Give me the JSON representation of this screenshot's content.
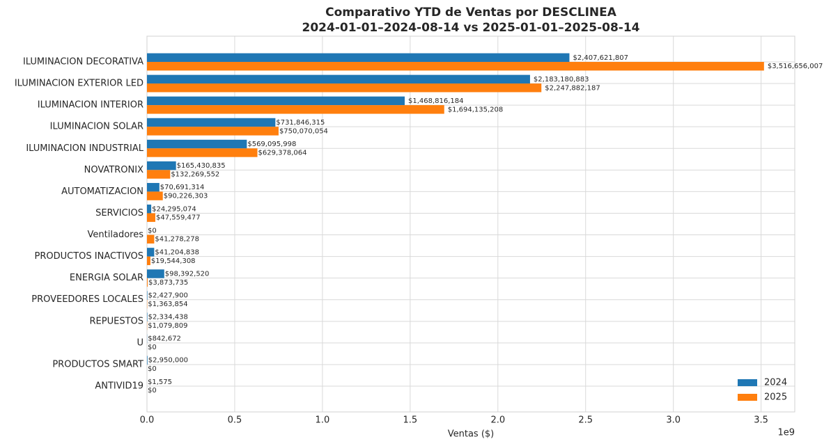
{
  "chart_data": {
    "type": "barh",
    "title": [
      "Comparativo YTD de Ventas por DESCLINEA",
      "2024-01-01–2024-08-14 vs 2025-01-01–2025-08-14"
    ],
    "xlabel": "Ventas ($)",
    "x_offset_label": "1e9",
    "categories": [
      "ILUMINACION DECORATIVA",
      "ILUMINACION EXTERIOR LED",
      "ILUMINACION INTERIOR",
      "ILUMINACION SOLAR",
      "ILUMINACION INDUSTRIAL",
      "NOVATRONIX",
      "AUTOMATIZACION",
      "SERVICIOS",
      "Ventiladores",
      "PRODUCTOS INACTIVOS",
      "ENERGIA SOLAR",
      "PROVEEDORES LOCALES",
      "REPUESTOS",
      "U",
      "PRODUCTOS SMART",
      "ANTIVID19"
    ],
    "series": [
      {
        "name": "2024",
        "color": "#1f77b4",
        "values": [
          2407621807,
          2183180883,
          1468816184,
          731846315,
          569095998,
          165430835,
          70691314,
          24295074,
          0,
          41204838,
          98392520,
          2427900,
          2334438,
          842672,
          2950000,
          1575
        ],
        "value_labels": [
          "$2,407,621,807",
          "$2,183,180,883",
          "$1,468,816,184",
          "$731,846,315",
          "$569,095,998",
          "$165,430,835",
          "$70,691,314",
          "$24,295,074",
          "$0",
          "$41,204,838",
          "$98,392,520",
          "$2,427,900",
          "$2,334,438",
          "$842,672",
          "$2,950,000",
          "$1,575"
        ]
      },
      {
        "name": "2025",
        "color": "#ff7f0e",
        "values": [
          3516656007,
          2247882187,
          1694135208,
          750070054,
          629378064,
          132269552,
          90226303,
          47559477,
          41278278,
          19544308,
          3873735,
          1363854,
          1079809,
          0,
          0,
          0
        ],
        "value_labels": [
          "$3,516,656,007",
          "$2,247,882,187",
          "$1,694,135,208",
          "$750,070,054",
          "$629,378,064",
          "$132,269,552",
          "$90,226,303",
          "$47,559,477",
          "$41,278,278",
          "$19,544,308",
          "$3,873,735",
          "$1,363,854",
          "$1,079,809",
          "$0",
          "$0",
          "$0"
        ]
      }
    ],
    "xlim": [
      0,
      3692000000
    ],
    "xticks": [
      {
        "value": 0,
        "label": "0.0"
      },
      {
        "value": 500000000,
        "label": "0.5"
      },
      {
        "value": 1000000000,
        "label": "1.0"
      },
      {
        "value": 1500000000,
        "label": "1.5"
      },
      {
        "value": 2000000000,
        "label": "2.0"
      },
      {
        "value": 2500000000,
        "label": "2.5"
      },
      {
        "value": 3000000000,
        "label": "3.0"
      },
      {
        "value": 3500000000,
        "label": "3.5"
      }
    ],
    "grid": true,
    "legend": "lower right"
  }
}
